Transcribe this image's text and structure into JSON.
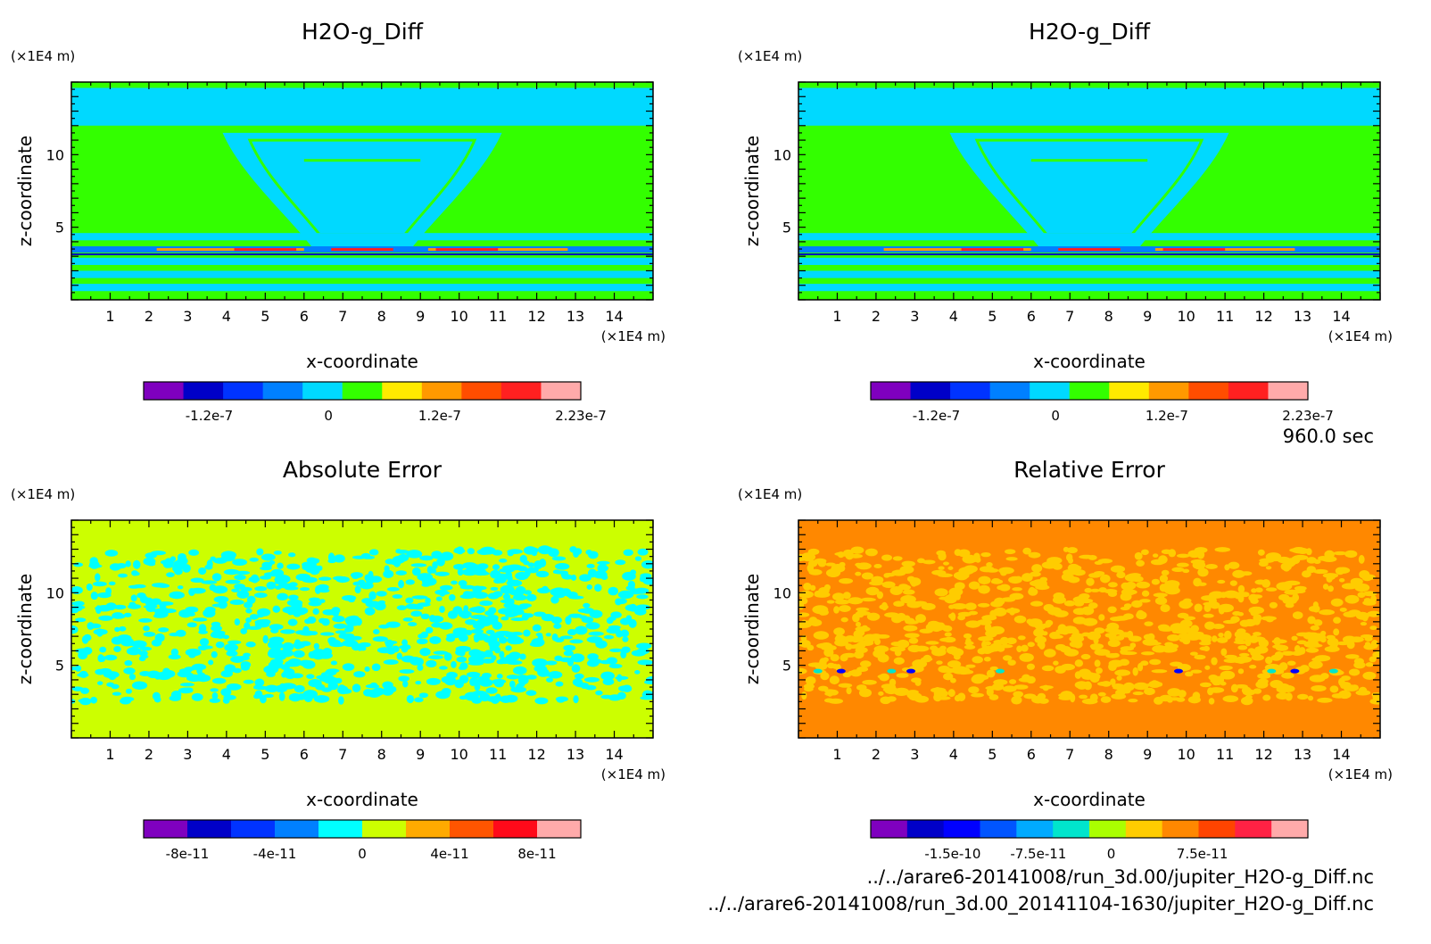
{
  "files": [
    "../../arare6-20141008/run_3d.00/jupiter_H2O-g_Diff.nc",
    "../../arare6-20141008/run_3d.00_20141104-1630/jupiter_H2O-g_Diff.nc"
  ],
  "time_label": "960.0 sec",
  "chart_data": [
    {
      "type": "heatmap",
      "title": "H2O-g_Diff",
      "xlabel": "x-coordinate",
      "ylabel": "z-coordinate",
      "xunit": "(×1E4 m)",
      "yunit": "(×1E4 m)",
      "xlim": [
        0,
        15
      ],
      "ylim": [
        0,
        15
      ],
      "xticks": [
        "1",
        "2",
        "3",
        "4",
        "5",
        "6",
        "7",
        "8",
        "9",
        "10",
        "11",
        "12",
        "13",
        "14"
      ],
      "yticks": [
        "5",
        "10"
      ],
      "pattern": "diff",
      "colorbar": {
        "colors": [
          "#7f00bf",
          "#0000c8",
          "#0033ff",
          "#0080ff",
          "#00d9ff",
          "#33ff00",
          "#ffea00",
          "#ff9900",
          "#ff4d00",
          "#ff2020",
          "#ffaaaa"
        ],
        "labels": [
          "-1.2e-7",
          "0",
          "1.2e-7",
          "2.23e-7"
        ]
      }
    },
    {
      "type": "heatmap",
      "title": "H2O-g_Diff",
      "xlabel": "x-coordinate",
      "ylabel": "z-coordinate",
      "xunit": "(×1E4 m)",
      "yunit": "(×1E4 m)",
      "xlim": [
        0,
        15
      ],
      "ylim": [
        0,
        15
      ],
      "xticks": [
        "1",
        "2",
        "3",
        "4",
        "5",
        "6",
        "7",
        "8",
        "9",
        "10",
        "11",
        "12",
        "13",
        "14"
      ],
      "yticks": [
        "5",
        "10"
      ],
      "pattern": "diff",
      "colorbar": {
        "colors": [
          "#7f00bf",
          "#0000c8",
          "#0033ff",
          "#0080ff",
          "#00d9ff",
          "#33ff00",
          "#ffea00",
          "#ff9900",
          "#ff4d00",
          "#ff2020",
          "#ffaaaa"
        ],
        "labels": [
          "-1.2e-7",
          "0",
          "1.2e-7",
          "2.23e-7"
        ]
      }
    },
    {
      "type": "heatmap",
      "title": "Absolute Error",
      "xlabel": "x-coordinate",
      "ylabel": "z-coordinate",
      "xunit": "(×1E4 m)",
      "yunit": "(×1E4 m)",
      "xlim": [
        0,
        15
      ],
      "ylim": [
        0,
        15
      ],
      "xticks": [
        "1",
        "2",
        "3",
        "4",
        "5",
        "6",
        "7",
        "8",
        "9",
        "10",
        "11",
        "12",
        "13",
        "14"
      ],
      "yticks": [
        "5",
        "10"
      ],
      "pattern": "abs",
      "colorbar": {
        "colors": [
          "#7f00bf",
          "#0000c8",
          "#0033ff",
          "#0080ff",
          "#00ffff",
          "#ccff00",
          "#ffaa00",
          "#ff5500",
          "#ff0a1a",
          "#ffaaaa"
        ],
        "labels": [
          "-8e-11",
          "-4e-11",
          "0",
          "4e-11",
          "8e-11"
        ]
      }
    },
    {
      "type": "heatmap",
      "title": "Relative Error",
      "xlabel": "x-coordinate",
      "ylabel": "z-coordinate",
      "xunit": "(×1E4 m)",
      "yunit": "(×1E4 m)",
      "xlim": [
        0,
        15
      ],
      "ylim": [
        0,
        15
      ],
      "xticks": [
        "1",
        "2",
        "3",
        "4",
        "5",
        "6",
        "7",
        "8",
        "9",
        "10",
        "11",
        "12",
        "13",
        "14"
      ],
      "yticks": [
        "5",
        "10"
      ],
      "pattern": "rel",
      "colorbar": {
        "colors": [
          "#7f00bf",
          "#0000c8",
          "#0000ff",
          "#0055ff",
          "#00aaff",
          "#00e5cc",
          "#aaff00",
          "#ffcc00",
          "#ff8800",
          "#ff4400",
          "#ff2244",
          "#ffaaaa"
        ],
        "labels": [
          "-1.5e-10",
          "-7.5e-11",
          "0",
          "7.5e-11"
        ]
      }
    }
  ]
}
